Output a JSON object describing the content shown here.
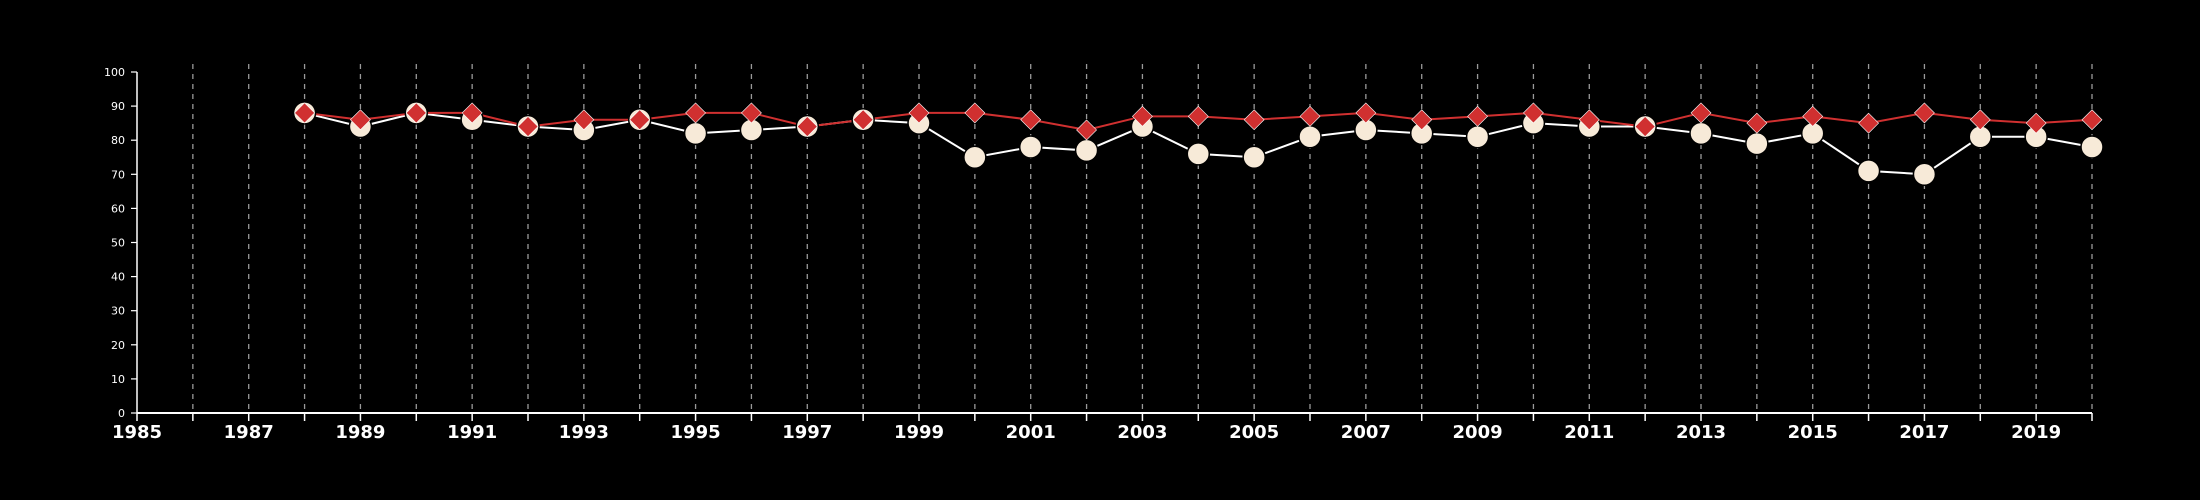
{
  "chart_data": {
    "type": "line",
    "xlim": [
      1985,
      2020
    ],
    "ylim": [
      0,
      100
    ],
    "x_ticks": [
      1985,
      1987,
      1989,
      1991,
      1993,
      1995,
      1997,
      1999,
      2001,
      2003,
      2005,
      2007,
      2009,
      2011,
      2013,
      2015,
      2017,
      2019
    ],
    "y_ticks": [
      0,
      10,
      20,
      30,
      40,
      50,
      60,
      70,
      80,
      90,
      100
    ],
    "grid": "vertical dashed lines at every year",
    "colors": {
      "background": "#000000",
      "axis": "#ffffff",
      "grid": "#9a9a9a"
    },
    "series": [
      {
        "marker": "circle",
        "color": "#f7ead8",
        "line_color": "#ffffff",
        "x": [
          1988,
          1989,
          1990,
          1991,
          1992,
          1993,
          1994,
          1995,
          1996,
          1997,
          1998,
          1999,
          2000,
          2001,
          2002,
          2003,
          2004,
          2005,
          2006,
          2007,
          2008,
          2009,
          2010,
          2011,
          2012,
          2013,
          2014,
          2015,
          2016,
          2017,
          2018,
          2019,
          2020
        ],
        "values": [
          88,
          84,
          88,
          86,
          84,
          83,
          86,
          82,
          83,
          84,
          86,
          85,
          75,
          78,
          77,
          84,
          76,
          75,
          81,
          83,
          82,
          81,
          85,
          84,
          84,
          82,
          79,
          82,
          71,
          70,
          81,
          81,
          78
        ]
      },
      {
        "marker": "diamond",
        "color": "#d03030",
        "line_color": "#d03030",
        "x": [
          1988,
          1989,
          1990,
          1991,
          1992,
          1993,
          1994,
          1995,
          1996,
          1997,
          1998,
          1999,
          2000,
          2001,
          2002,
          2003,
          2004,
          2005,
          2006,
          2007,
          2008,
          2009,
          2010,
          2011,
          2012,
          2013,
          2014,
          2015,
          2016,
          2017,
          2018,
          2019,
          2020
        ],
        "values": [
          88,
          86,
          88,
          88,
          84,
          86,
          86,
          88,
          88,
          84,
          86,
          88,
          88,
          86,
          83,
          87,
          87,
          86,
          87,
          88,
          86,
          87,
          88,
          86,
          84,
          88,
          85,
          87,
          85,
          88,
          86,
          85,
          86
        ]
      }
    ]
  }
}
